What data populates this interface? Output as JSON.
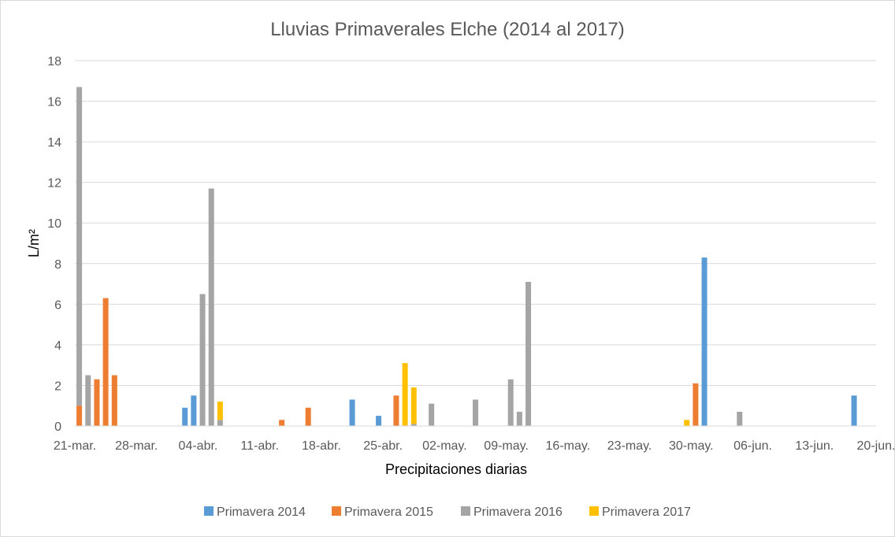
{
  "chart_data": {
    "type": "bar",
    "stacked": true,
    "title": "Lluvias Primaverales Elche (2014 al 2017)",
    "xlabel": "Precipitaciones diarias",
    "ylabel": "L/m²",
    "ylim": [
      0,
      18
    ],
    "y_ticks": [
      0,
      2,
      4,
      6,
      8,
      10,
      12,
      14,
      16,
      18
    ],
    "x_ticks": [
      "21-mar.",
      "28-mar.",
      "04-abr.",
      "11-abr.",
      "18-abr.",
      "25-abr.",
      "02-may.",
      "09-may.",
      "16-may.",
      "23-may.",
      "30-may.",
      "06-jun.",
      "13-jun.",
      "20-jun."
    ],
    "x_range_days": [
      0,
      91
    ],
    "grid": true,
    "legend_position": "bottom",
    "series": [
      {
        "name": "Primavera 2014",
        "color": "#5B9BD5",
        "points": [
          {
            "day": 12,
            "value": 0.9
          },
          {
            "day": 13,
            "value": 1.5
          },
          {
            "day": 31,
            "value": 1.3
          },
          {
            "day": 34,
            "value": 0.5
          },
          {
            "day": 71,
            "value": 8.3
          },
          {
            "day": 88,
            "value": 1.5
          }
        ]
      },
      {
        "name": "Primavera 2015",
        "color": "#ED7D31",
        "points": [
          {
            "day": 0,
            "value": 1.0
          },
          {
            "day": 2,
            "value": 2.3
          },
          {
            "day": 3,
            "value": 6.3
          },
          {
            "day": 4,
            "value": 2.5
          },
          {
            "day": 23,
            "value": 0.3
          },
          {
            "day": 26,
            "value": 0.9
          },
          {
            "day": 36,
            "value": 1.5
          },
          {
            "day": 70,
            "value": 2.1
          }
        ]
      },
      {
        "name": "Primavera 2016",
        "color": "#A5A5A5",
        "points": [
          {
            "day": 0,
            "value": 15.7
          },
          {
            "day": 1,
            "value": 2.5
          },
          {
            "day": 14,
            "value": 6.5
          },
          {
            "day": 15,
            "value": 11.7
          },
          {
            "day": 16,
            "value": 0.3
          },
          {
            "day": 38,
            "value": 0.1
          },
          {
            "day": 40,
            "value": 1.1
          },
          {
            "day": 45,
            "value": 1.3
          },
          {
            "day": 49,
            "value": 2.3
          },
          {
            "day": 50,
            "value": 0.7
          },
          {
            "day": 51,
            "value": 7.1
          },
          {
            "day": 75,
            "value": 0.7
          }
        ]
      },
      {
        "name": "Primavera 2017",
        "color": "#FFC000",
        "points": [
          {
            "day": 16,
            "value": 0.9
          },
          {
            "day": 37,
            "value": 3.1
          },
          {
            "day": 38,
            "value": 1.8
          },
          {
            "day": 69,
            "value": 0.3
          }
        ]
      }
    ]
  }
}
